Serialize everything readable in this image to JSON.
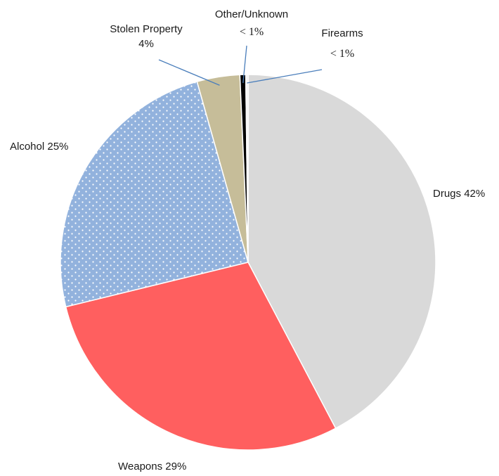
{
  "chart_data": {
    "type": "pie",
    "title": "",
    "slices": [
      {
        "label": "Drugs",
        "value_text": "42%",
        "value": 42.4,
        "color": "#d9d9d9"
      },
      {
        "label": "Weapons",
        "value_text": "29%",
        "value": 29.0,
        "color": "#ff5f5f"
      },
      {
        "label": "Alcohol",
        "value_text": "25%",
        "value": 24.5,
        "color": "#92b2dd"
      },
      {
        "label": "Stolen Property",
        "value_text": "4%",
        "value": 3.7,
        "color": "#c6bd99"
      },
      {
        "label": "Other/Unknown",
        "value_text": "< 1%",
        "value": 0.5,
        "color": "#000000"
      },
      {
        "label": "Firearms",
        "value_text": "< 1%",
        "value": 0.2,
        "color": "#eeeeee"
      }
    ],
    "start_angle_deg": 0,
    "direction": "clockwise",
    "leader_line_color": "#4a7ebb"
  }
}
